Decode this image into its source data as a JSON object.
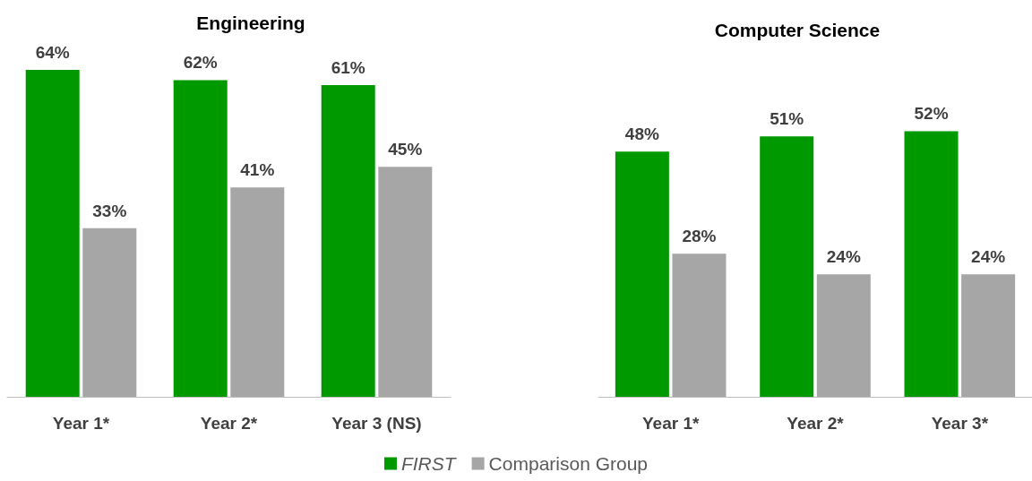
{
  "chart_data": [
    {
      "type": "bar",
      "title": "Engineering",
      "categories": [
        "Year 1*",
        "Year 2*",
        "Year 3 (NS)"
      ],
      "series": [
        {
          "name": "FIRST",
          "color": "#009900",
          "values": [
            64,
            62,
            61
          ],
          "value_labels": [
            "64%",
            "62%",
            "61%"
          ]
        },
        {
          "name": "Comparison Group",
          "color": "#a6a6a6",
          "values": [
            33,
            41,
            45
          ],
          "value_labels": [
            "33%",
            "41%",
            "45%"
          ]
        }
      ],
      "tick_labels": "x",
      "legend": "bottom"
    },
    {
      "type": "bar",
      "title": "Computer Science",
      "categories": [
        "Year 1*",
        "Year 2*",
        "Year 3*"
      ],
      "series": [
        {
          "color": "#009900",
          "values": [
            48,
            51,
            52
          ],
          "value_labels": [
            "48%",
            "51%",
            "52%"
          ]
        },
        {
          "color": "#a6a6a6",
          "values": [
            28,
            24,
            24
          ],
          "value_labels": [
            "28%",
            "24%",
            "24%"
          ]
        }
      ],
      "tick_labels": "x"
    }
  ]
}
